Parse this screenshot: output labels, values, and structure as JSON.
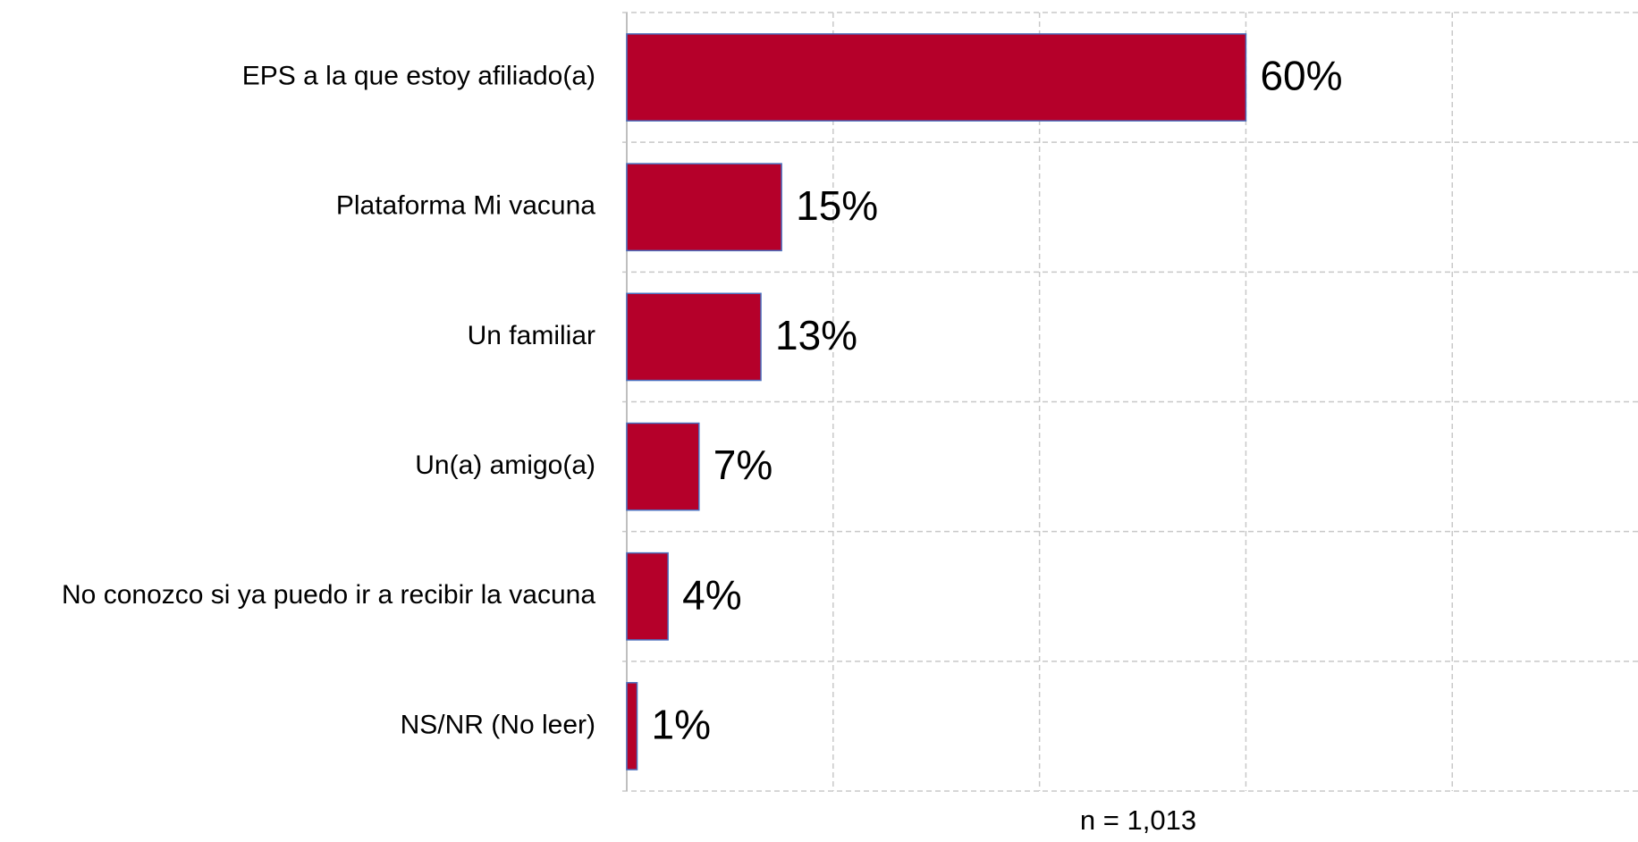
{
  "chart_data": {
    "type": "barh",
    "categories": [
      "EPS a la que estoy afiliado(a)",
      "Plataforma Mi vacuna",
      "Un familiar",
      "Un(a) amigo(a)",
      "No conozco si ya puedo ir a recibir la vacuna",
      "NS/NR (No leer)"
    ],
    "values": [
      60,
      15,
      13,
      7,
      4,
      1
    ],
    "value_labels": [
      "60%",
      "15%",
      "13%",
      "7%",
      "4%",
      "1%"
    ],
    "color": "#b5002a",
    "xlim": [
      0,
      98
    ],
    "xticks": [
      0,
      20,
      40,
      60,
      80
    ],
    "grid": true,
    "annotation": "n = 1,013"
  }
}
